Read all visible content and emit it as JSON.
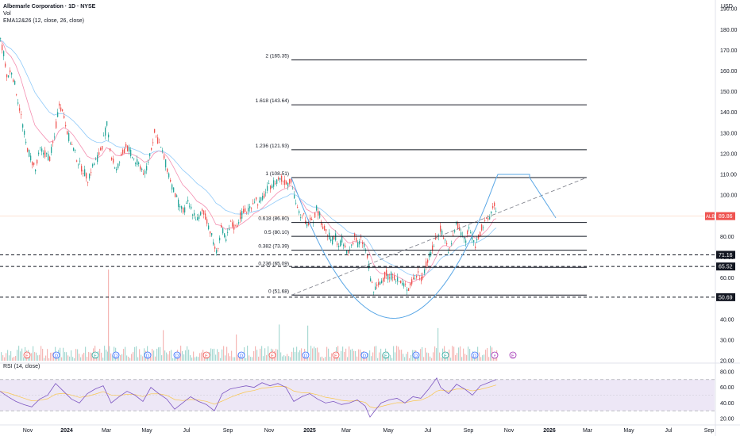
{
  "header": {
    "title": "Albemarle Corporation · 1D · NYSE",
    "vol_label": "Vol",
    "ema_label": "EMA12&26 (12, close, 26, close)",
    "currency": "USD"
  },
  "rsi": {
    "label": "RSI (14, close)"
  },
  "colors": {
    "up": "#26a69a",
    "down": "#ef5350",
    "fib": "#131722",
    "cup": "#5aa7e6",
    "rsi_line": "#7e57c2",
    "rsi_band": "#ede7f6",
    "price_badge": "#ef5350",
    "level_badge": "#131722"
  },
  "chart_data": {
    "type": "candlestick",
    "price_axis": {
      "ticks": [
        "190.00",
        "180.00",
        "170.00",
        "160.00",
        "150.00",
        "140.00",
        "130.00",
        "120.00",
        "110.00",
        "100.00",
        "90.00",
        "80.00",
        "70.00",
        "60.00",
        "50.00",
        "40.00",
        "30.00",
        "20.00"
      ],
      "ylim": [
        20,
        192
      ]
    },
    "time_axis": {
      "labels": [
        "Nov",
        "2024",
        "Mar",
        "May",
        "Jul",
        "Sep",
        "Nov",
        "2025",
        "Mar",
        "May",
        "Jul",
        "Sep",
        "Nov",
        "2026",
        "Mar",
        "May",
        "Jul",
        "Sep"
      ]
    },
    "current_price": {
      "label": "ALB",
      "value": "89.86"
    },
    "horizontal_levels": [
      "71.16",
      "65.52",
      "50.69"
    ],
    "fib_levels": [
      {
        "label": "2 (165.35)",
        "value": 165.35
      },
      {
        "label": "1.618 (143.64)",
        "value": 143.64
      },
      {
        "label": "1.236 (121.93)",
        "value": 121.93
      },
      {
        "label": "1 (108.51)",
        "value": 108.51
      },
      {
        "label": "0.618 (86.80)",
        "value": 86.8
      },
      {
        "label": "0.5 (80.10)",
        "value": 80.1
      },
      {
        "label": "0.382 (73.39)",
        "value": 73.39
      },
      {
        "label": "0.236 (65.09)",
        "value": 65.09
      },
      {
        "label": "0 (51.68)",
        "value": 51.68
      }
    ],
    "price_path": [
      [
        0,
        175
      ],
      [
        4,
        168
      ],
      [
        8,
        157
      ],
      [
        14,
        160
      ],
      [
        20,
        150
      ],
      [
        26,
        138
      ],
      [
        32,
        125
      ],
      [
        38,
        118
      ],
      [
        44,
        112
      ],
      [
        50,
        122
      ],
      [
        56,
        120
      ],
      [
        62,
        118
      ],
      [
        68,
        128
      ],
      [
        74,
        145
      ],
      [
        80,
        138
      ],
      [
        86,
        128
      ],
      [
        92,
        122
      ],
      [
        98,
        116
      ],
      [
        104,
        112
      ],
      [
        110,
        108
      ],
      [
        116,
        114
      ],
      [
        122,
        118
      ],
      [
        128,
        124
      ],
      [
        134,
        134
      ],
      [
        140,
        118
      ],
      [
        146,
        112
      ],
      [
        152,
        118
      ],
      [
        158,
        124
      ],
      [
        164,
        120
      ],
      [
        170,
        116
      ],
      [
        176,
        114
      ],
      [
        182,
        110
      ],
      [
        188,
        120
      ],
      [
        194,
        130
      ],
      [
        200,
        125
      ],
      [
        206,
        118
      ],
      [
        212,
        110
      ],
      [
        218,
        102
      ],
      [
        224,
        96
      ],
      [
        230,
        92
      ],
      [
        236,
        96
      ],
      [
        242,
        92
      ],
      [
        248,
        88
      ],
      [
        254,
        92
      ],
      [
        260,
        88
      ],
      [
        266,
        80
      ],
      [
        272,
        72
      ],
      [
        278,
        84
      ],
      [
        284,
        78
      ],
      [
        290,
        86
      ],
      [
        296,
        84
      ],
      [
        302,
        90
      ],
      [
        308,
        92
      ],
      [
        314,
        94
      ],
      [
        320,
        98
      ],
      [
        326,
        96
      ],
      [
        332,
        100
      ],
      [
        338,
        104
      ],
      [
        344,
        106
      ],
      [
        350,
        108
      ],
      [
        356,
        107
      ],
      [
        362,
        106
      ],
      [
        366,
        108
      ],
      [
        370,
        100
      ],
      [
        374,
        94
      ],
      [
        378,
        88
      ],
      [
        382,
        90
      ],
      [
        386,
        85
      ],
      [
        390,
        90
      ],
      [
        394,
        88
      ],
      [
        398,
        94
      ],
      [
        402,
        90
      ],
      [
        406,
        85
      ],
      [
        410,
        82
      ],
      [
        414,
        80
      ],
      [
        418,
        78
      ],
      [
        422,
        80
      ],
      [
        426,
        76
      ],
      [
        430,
        78
      ],
      [
        434,
        74
      ],
      [
        438,
        72
      ],
      [
        442,
        76
      ],
      [
        446,
        80
      ],
      [
        450,
        76
      ],
      [
        454,
        78
      ],
      [
        458,
        76
      ],
      [
        462,
        70
      ],
      [
        466,
        60
      ],
      [
        470,
        54
      ],
      [
        474,
        55
      ],
      [
        478,
        58
      ],
      [
        482,
        60
      ],
      [
        486,
        62
      ],
      [
        490,
        60
      ],
      [
        494,
        62
      ],
      [
        498,
        60
      ],
      [
        502,
        58
      ],
      [
        506,
        57
      ],
      [
        510,
        56
      ],
      [
        514,
        55
      ],
      [
        518,
        58
      ],
      [
        522,
        60
      ],
      [
        526,
        62
      ],
      [
        530,
        60
      ],
      [
        534,
        64
      ],
      [
        538,
        68
      ],
      [
        542,
        72
      ],
      [
        546,
        76
      ],
      [
        550,
        80
      ],
      [
        554,
        84
      ],
      [
        558,
        80
      ],
      [
        562,
        76
      ],
      [
        566,
        72
      ],
      [
        570,
        80
      ],
      [
        574,
        86
      ],
      [
        578,
        84
      ],
      [
        582,
        80
      ],
      [
        586,
        78
      ],
      [
        590,
        84
      ],
      [
        594,
        80
      ],
      [
        598,
        76
      ],
      [
        602,
        80
      ],
      [
        606,
        84
      ],
      [
        610,
        86
      ],
      [
        614,
        88
      ],
      [
        618,
        92
      ],
      [
        622,
        96
      ],
      [
        625,
        90
      ]
    ],
    "rsi": {
      "ticks": [
        "80.00",
        "60.00",
        "40.00",
        "20.00"
      ],
      "ylim": [
        15,
        85
      ],
      "overbought": 70,
      "oversold": 30,
      "path": [
        [
          0,
          55
        ],
        [
          10,
          48
        ],
        [
          20,
          42
        ],
        [
          30,
          38
        ],
        [
          40,
          35
        ],
        [
          50,
          45
        ],
        [
          60,
          50
        ],
        [
          70,
          65
        ],
        [
          80,
          55
        ],
        [
          90,
          45
        ],
        [
          100,
          40
        ],
        [
          110,
          52
        ],
        [
          120,
          58
        ],
        [
          130,
          62
        ],
        [
          140,
          40
        ],
        [
          150,
          48
        ],
        [
          160,
          55
        ],
        [
          170,
          50
        ],
        [
          180,
          42
        ],
        [
          190,
          60
        ],
        [
          200,
          52
        ],
        [
          210,
          45
        ],
        [
          220,
          32
        ],
        [
          230,
          40
        ],
        [
          240,
          48
        ],
        [
          250,
          42
        ],
        [
          260,
          38
        ],
        [
          270,
          30
        ],
        [
          280,
          52
        ],
        [
          290,
          58
        ],
        [
          300,
          60
        ],
        [
          310,
          62
        ],
        [
          320,
          60
        ],
        [
          330,
          66
        ],
        [
          340,
          62
        ],
        [
          350,
          65
        ],
        [
          360,
          60
        ],
        [
          370,
          42
        ],
        [
          380,
          48
        ],
        [
          390,
          52
        ],
        [
          400,
          45
        ],
        [
          410,
          40
        ],
        [
          420,
          42
        ],
        [
          430,
          38
        ],
        [
          440,
          40
        ],
        [
          450,
          44
        ],
        [
          460,
          36
        ],
        [
          466,
          22
        ],
        [
          472,
          30
        ],
        [
          480,
          40
        ],
        [
          490,
          44
        ],
        [
          500,
          46
        ],
        [
          510,
          40
        ],
        [
          520,
          48
        ],
        [
          530,
          46
        ],
        [
          540,
          58
        ],
        [
          550,
          72
        ],
        [
          555,
          60
        ],
        [
          565,
          52
        ],
        [
          575,
          64
        ],
        [
          585,
          58
        ],
        [
          595,
          50
        ],
        [
          605,
          62
        ],
        [
          615,
          66
        ],
        [
          625,
          70
        ]
      ]
    }
  }
}
